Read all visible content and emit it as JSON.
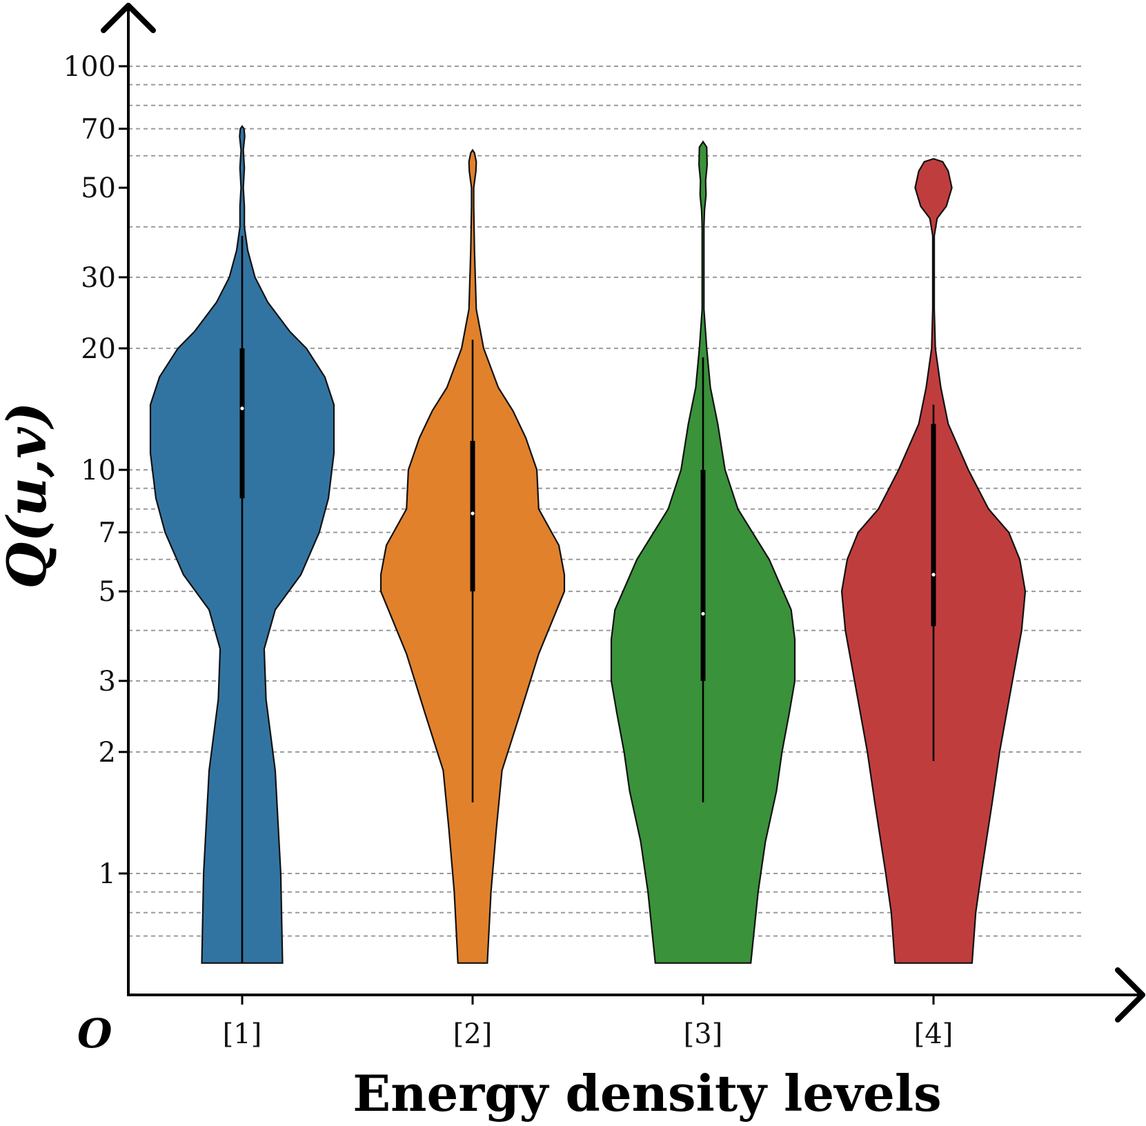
{
  "chart_data": {
    "type": "violin",
    "xlabel": "Energy density levels",
    "ylabel": "Q(u,v)",
    "origin_label": "O",
    "y_scale": "log",
    "ylim": [
      0.6,
      125
    ],
    "y_ticks": [
      1,
      2,
      3,
      5,
      7,
      10,
      20,
      30,
      50,
      70,
      100
    ],
    "y_grid": [
      0.7,
      0.8,
      0.9,
      1,
      2,
      3,
      4,
      5,
      6,
      7,
      8,
      9,
      10,
      20,
      30,
      40,
      60,
      70,
      80,
      90,
      100
    ],
    "grid": true,
    "categories": [
      "[1]",
      "[2]",
      "[3]",
      "[4]"
    ],
    "series": [
      {
        "category": "[1]",
        "color": "#3274a1",
        "median": 14.2,
        "q1": 8.5,
        "q3": 20,
        "whisker_low": 0.6,
        "whisker_high": 38,
        "density": [
          [
            0.6,
            0.22
          ],
          [
            1,
            0.21
          ],
          [
            1.8,
            0.18
          ],
          [
            2.7,
            0.13
          ],
          [
            3.6,
            0.12
          ],
          [
            4.5,
            0.18
          ],
          [
            5.5,
            0.32
          ],
          [
            7,
            0.42
          ],
          [
            8.5,
            0.47
          ],
          [
            11,
            0.5
          ],
          [
            14.5,
            0.5
          ],
          [
            17,
            0.45
          ],
          [
            20,
            0.35
          ],
          [
            22,
            0.26
          ],
          [
            26,
            0.14
          ],
          [
            30,
            0.07
          ],
          [
            35,
            0.03
          ],
          [
            40,
            0.012
          ],
          [
            45,
            0.012
          ],
          [
            50,
            0.006
          ],
          [
            56,
            0.012
          ],
          [
            62,
            0.006
          ],
          [
            67,
            0.014
          ],
          [
            70,
            0.01
          ],
          [
            71,
            0
          ]
        ]
      },
      {
        "category": "[2]",
        "color": "#e1812c",
        "median": 7.8,
        "q1": 5,
        "q3": 11.8,
        "whisker_low": 1.5,
        "whisker_high": 21,
        "density": [
          [
            0.6,
            0.08
          ],
          [
            0.9,
            0.1
          ],
          [
            1.3,
            0.13
          ],
          [
            1.8,
            0.16
          ],
          [
            2.5,
            0.26
          ],
          [
            3.5,
            0.36
          ],
          [
            5,
            0.5
          ],
          [
            5.5,
            0.5
          ],
          [
            6.5,
            0.47
          ],
          [
            8,
            0.36
          ],
          [
            10,
            0.35
          ],
          [
            12,
            0.29
          ],
          [
            14,
            0.22
          ],
          [
            16,
            0.14
          ],
          [
            20,
            0.06
          ],
          [
            25,
            0.02
          ],
          [
            35,
            0.01
          ],
          [
            45,
            0.006
          ],
          [
            50,
            0.006
          ],
          [
            55,
            0.018
          ],
          [
            58,
            0.02
          ],
          [
            61,
            0.01
          ],
          [
            62,
            0
          ]
        ]
      },
      {
        "category": "[3]",
        "color": "#3a923a",
        "median": 4.4,
        "q1": 3,
        "q3": 10,
        "whisker_low": 1.5,
        "whisker_high": 19,
        "density": [
          [
            0.6,
            0.26
          ],
          [
            0.9,
            0.3
          ],
          [
            1.2,
            0.34
          ],
          [
            1.6,
            0.4
          ],
          [
            2,
            0.43
          ],
          [
            2.5,
            0.47
          ],
          [
            3,
            0.5
          ],
          [
            3.8,
            0.5
          ],
          [
            4.5,
            0.48
          ],
          [
            6,
            0.36
          ],
          [
            8,
            0.19
          ],
          [
            10,
            0.12
          ],
          [
            13,
            0.08
          ],
          [
            16,
            0.04
          ],
          [
            20,
            0.02
          ],
          [
            25,
            0.005
          ],
          [
            40,
            0.005
          ],
          [
            44,
            0.008
          ],
          [
            48,
            0.016
          ],
          [
            52,
            0.014
          ],
          [
            57,
            0.022
          ],
          [
            63,
            0.02
          ],
          [
            65,
            0
          ]
        ]
      },
      {
        "category": "[4]",
        "color": "#c03d3e",
        "median": 5.5,
        "q1": 4.1,
        "q3": 13,
        "whisker_low": 1.9,
        "whisker_high": 14.5,
        "density": [
          [
            0.6,
            0.21
          ],
          [
            0.8,
            0.23
          ],
          [
            1,
            0.26
          ],
          [
            1.5,
            0.32
          ],
          [
            2,
            0.36
          ],
          [
            3,
            0.43
          ],
          [
            4,
            0.48
          ],
          [
            5,
            0.5
          ],
          [
            6,
            0.47
          ],
          [
            7,
            0.41
          ],
          [
            8,
            0.3
          ],
          [
            10,
            0.19
          ],
          [
            13,
            0.08
          ],
          [
            16,
            0.04
          ],
          [
            20,
            0.01
          ],
          [
            25,
            0.004
          ],
          [
            38,
            0.004
          ],
          [
            42,
            0.02
          ],
          [
            45,
            0.07
          ],
          [
            50,
            0.1
          ],
          [
            55,
            0.08
          ],
          [
            58,
            0.05
          ],
          [
            59,
            0
          ]
        ]
      }
    ]
  }
}
